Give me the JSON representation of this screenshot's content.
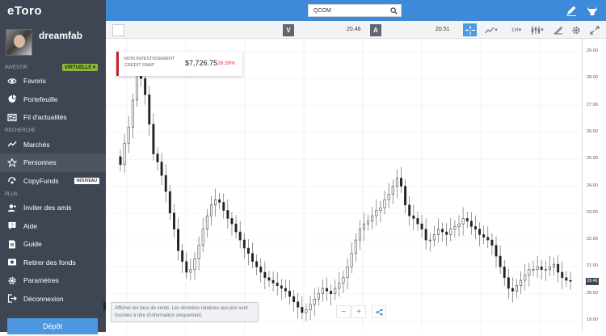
{
  "brand": {
    "logo": "eToro",
    "accent": "#3e8ad8",
    "sidebar_bg": "#3f4653",
    "depot_bg": "#4d96e0"
  },
  "profile": {
    "username": "dreamfab"
  },
  "sidebar": {
    "invest_label": "INVESTIR",
    "mode_badge": "VIRTUELLE ▾",
    "invest_items": [
      {
        "label": "Favoris",
        "icon": "eye-icon"
      },
      {
        "label": "Portefeuille",
        "icon": "pie-chart-icon"
      },
      {
        "label": "Fil d'actualités",
        "icon": "newspaper-icon"
      }
    ],
    "search_label": "RECHERCHE",
    "search_items": [
      {
        "label": "Marchés",
        "icon": "trend-icon"
      },
      {
        "label": "Personnes",
        "icon": "star-icon",
        "active": true
      },
      {
        "label": "CopyFunds",
        "icon": "copyfunds-icon",
        "badge": "NOUVEAU"
      }
    ],
    "plus_label": "PLUS",
    "plus_items": [
      {
        "label": "Inviter des amis",
        "icon": "invite-icon"
      },
      {
        "label": "Aide",
        "icon": "help-icon"
      },
      {
        "label": "Guide",
        "icon": "guide-icon"
      },
      {
        "label": "Retirer des fonds",
        "icon": "withdraw-icon"
      },
      {
        "label": "Paramètres",
        "icon": "gear-icon"
      },
      {
        "label": "Déconnexion",
        "icon": "logout-icon"
      }
    ],
    "depot_label": "Dépôt"
  },
  "topbar": {
    "search_value": "QCOM",
    "search_icon": "search-icon",
    "edit_icon": "pencil-icon",
    "bull_icon": "bull-icon"
  },
  "toolbar": {
    "sell_label": "V",
    "sell_price": "20.46",
    "buy_label": "A",
    "buy_price": "20.51",
    "timeframe": "1H"
  },
  "portfolio": {
    "label_line1": "MON INVESTISSEMENT",
    "label_line2": "CRÉDIT SNAP",
    "value": "$7,726.75",
    "change": "-28.59%"
  },
  "chart_data": {
    "type": "candlestick",
    "symbol": "QCOM",
    "y_ticks": [
      "29.00",
      "28.00",
      "27.00",
      "26.00",
      "25.00",
      "24.00",
      "23.00",
      "22.00",
      "21.00",
      "20.00",
      "19.00"
    ],
    "ylim": [
      19.0,
      29.15
    ],
    "current_price_tag": "20.46",
    "closes": [
      24.8,
      25.6,
      26.2,
      27.2,
      28.5,
      28.0,
      27.4,
      26.3,
      25.2,
      24.9,
      24.4,
      23.8,
      23.0,
      22.4,
      21.6,
      21.2,
      20.8,
      20.9,
      21.3,
      21.8,
      22.4,
      22.9,
      23.3,
      23.5,
      23.4,
      23.1,
      22.8,
      22.6,
      22.3,
      22.0,
      21.7,
      21.5,
      21.2,
      21.0,
      20.8,
      20.6,
      20.5,
      20.4,
      20.3,
      20.2,
      20.1,
      19.9,
      19.7,
      19.5,
      19.3,
      19.4,
      19.6,
      19.8,
      20.0,
      20.2,
      20.1,
      20.0,
      20.2,
      20.4,
      20.6,
      21.0,
      21.5,
      22.0,
      22.4,
      22.6,
      22.7,
      22.9,
      23.1,
      23.2,
      23.5,
      23.7,
      24.0,
      24.3,
      24.0,
      23.3,
      22.9,
      22.8,
      22.6,
      22.4,
      22.0,
      22.0,
      22.2,
      22.4,
      22.3,
      22.2,
      22.4,
      22.5,
      22.6,
      22.8,
      22.7,
      22.5,
      22.4,
      22.2,
      22.1,
      22.0,
      21.8,
      21.4,
      21.0,
      20.6,
      20.2,
      20.1,
      20.3,
      20.5,
      20.7,
      20.9,
      20.9,
      21.0,
      20.9,
      20.9,
      21.0,
      21.1,
      20.8,
      20.6,
      20.5,
      20.46
    ]
  },
  "disclaimer": "Afficher les taux de vente. Les données relatives aux prix sont fournies à titre d'information uniquement.",
  "zoom": {
    "minus": "−",
    "plus": "+",
    "share_icon": "share-icon"
  }
}
